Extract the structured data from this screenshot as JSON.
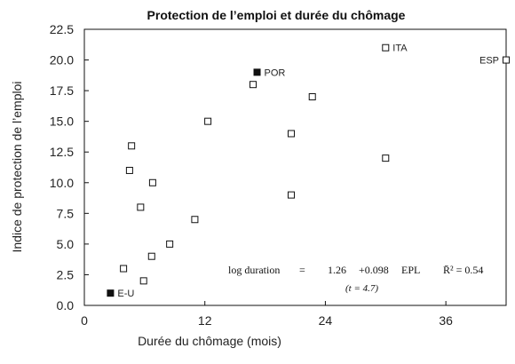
{
  "chart_data": {
    "type": "scatter",
    "title": "Protection de l’emploi et durée du chômage",
    "xlabel": "Durée du chômage (mois)",
    "ylabel": "Indice de protection de l’emploi",
    "xlim": [
      0,
      42
    ],
    "ylim": [
      0,
      22.5
    ],
    "xticks": [
      0,
      12,
      24,
      36
    ],
    "xtick_labels": [
      "0",
      "12",
      "24",
      "36"
    ],
    "yticks": [
      0,
      2.5,
      5,
      7.5,
      10,
      12.5,
      15,
      17.5,
      20,
      22.5
    ],
    "ytick_labels": [
      "0.0",
      "2.5",
      "5.0",
      "7.5",
      "10.0",
      "12.5",
      "15.0",
      "17.5",
      "20.0",
      "22.5"
    ],
    "grid": false,
    "points": [
      {
        "x": 2.6,
        "y": 1,
        "label": "E-U",
        "filled": true
      },
      {
        "x": 17.2,
        "y": 19,
        "label": "POR",
        "filled": true
      },
      {
        "x": 30,
        "y": 21,
        "label": "ITA",
        "filled": false
      },
      {
        "x": 42,
        "y": 20,
        "label": "ESP",
        "filled": false
      },
      {
        "x": 3.9,
        "y": 3,
        "label": "",
        "filled": false
      },
      {
        "x": 5.9,
        "y": 2,
        "label": "",
        "filled": false
      },
      {
        "x": 6.7,
        "y": 4,
        "label": "",
        "filled": false
      },
      {
        "x": 8.5,
        "y": 5,
        "label": "",
        "filled": false
      },
      {
        "x": 11,
        "y": 7,
        "label": "",
        "filled": false
      },
      {
        "x": 5.6,
        "y": 8,
        "label": "",
        "filled": false
      },
      {
        "x": 6.8,
        "y": 10,
        "label": "",
        "filled": false
      },
      {
        "x": 4.5,
        "y": 11,
        "label": "",
        "filled": false
      },
      {
        "x": 4.7,
        "y": 13,
        "label": "",
        "filled": false
      },
      {
        "x": 12.3,
        "y": 15,
        "label": "",
        "filled": false
      },
      {
        "x": 16.8,
        "y": 18,
        "label": "",
        "filled": false
      },
      {
        "x": 20.6,
        "y": 14,
        "label": "",
        "filled": false
      },
      {
        "x": 22.7,
        "y": 17,
        "label": "",
        "filled": false
      },
      {
        "x": 20.6,
        "y": 9,
        "label": "",
        "filled": false
      },
      {
        "x": 30,
        "y": 12,
        "label": "",
        "filled": false
      }
    ],
    "annotation": {
      "equation_lhs": "log duration",
      "equals": "=",
      "intercept": "1.26",
      "slope_term": "+0.098",
      "variable": "EPL",
      "r2": "R̄² = 0.54",
      "tstat": "(t = 4.7)"
    }
  }
}
